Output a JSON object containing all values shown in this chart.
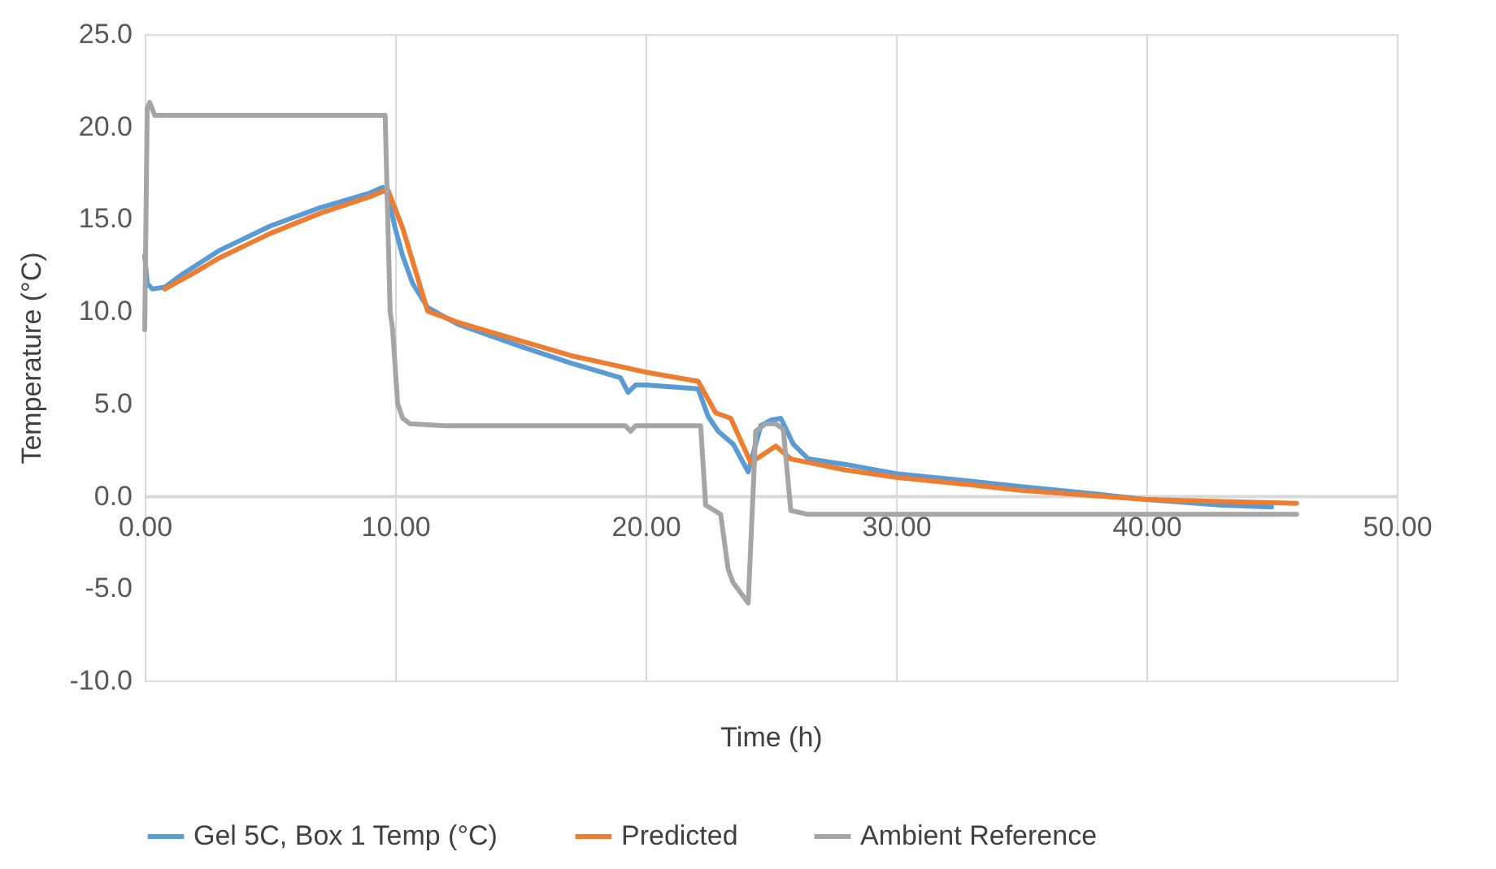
{
  "chart_data": {
    "type": "line",
    "xlabel": "Time (h)",
    "ylabel": "Temperature (°C)",
    "xlim": [
      0,
      50
    ],
    "xticks": [
      {
        "value": 0,
        "label": "0.00"
      },
      {
        "value": 10,
        "label": "10.00"
      },
      {
        "value": 20,
        "label": "20.00"
      },
      {
        "value": 30,
        "label": "30.00"
      },
      {
        "value": 40,
        "label": "40.00"
      },
      {
        "value": 50,
        "label": "50.00"
      }
    ],
    "ylim": [
      -10,
      25
    ],
    "yticks": [
      {
        "value": -10,
        "label": "-10.0"
      },
      {
        "value": -5,
        "label": "-5.0"
      },
      {
        "value": 0,
        "label": "0.0"
      },
      {
        "value": 5,
        "label": "5.0"
      },
      {
        "value": 10,
        "label": "10.0"
      },
      {
        "value": 15,
        "label": "15.0"
      },
      {
        "value": 20,
        "label": "20.0"
      },
      {
        "value": 25,
        "label": "25.0"
      }
    ],
    "grid": "x",
    "legend": "bottom",
    "marker": "none",
    "line_style": "solid",
    "series": [
      {
        "name": "Gel 5C, Box 1 Temp (°C)",
        "color": "#5b9bd5",
        "x": [
          0,
          0.1,
          0.3,
          0.8,
          1.5,
          3,
          5,
          7,
          9,
          9.5,
          9.7,
          10.0,
          10.3,
          10.7,
          11.3,
          12.5,
          15,
          17,
          19,
          19.3,
          19.6,
          20,
          22.1,
          22.5,
          22.9,
          23.5,
          24.1,
          24.6,
          25.0,
          25.4,
          25.9,
          26.5,
          28,
          30,
          33,
          35,
          38,
          40,
          43,
          45
        ],
        "values": [
          13,
          11.5,
          11.2,
          11.3,
          12.0,
          13.3,
          14.6,
          15.6,
          16.4,
          16.7,
          16.3,
          14.5,
          13.0,
          11.5,
          10.2,
          9.3,
          8.1,
          7.2,
          6.4,
          5.6,
          6.0,
          6.0,
          5.8,
          4.3,
          3.5,
          2.8,
          1.3,
          3.8,
          4.1,
          4.2,
          2.8,
          2.0,
          1.7,
          1.2,
          0.8,
          0.5,
          0.1,
          -0.2,
          -0.5,
          -0.6
        ]
      },
      {
        "name": "Predicted",
        "color": "#ed7d31",
        "x": [
          0.8,
          2,
          3,
          5,
          7,
          9,
          9.7,
          10.3,
          11.3,
          12.5,
          15,
          17,
          20,
          22.1,
          22.8,
          23.4,
          24.2,
          25.2,
          25.8,
          28,
          30,
          33,
          35,
          38,
          40,
          43,
          46
        ],
        "values": [
          11.2,
          12.1,
          12.9,
          14.2,
          15.3,
          16.2,
          16.6,
          14.5,
          10.0,
          9.4,
          8.4,
          7.6,
          6.7,
          6.2,
          4.5,
          4.2,
          1.8,
          2.7,
          2.0,
          1.4,
          1.0,
          0.6,
          0.3,
          0.0,
          -0.2,
          -0.3,
          -0.4
        ]
      },
      {
        "name": "Ambient Reference",
        "color": "#a5a5a5",
        "x": [
          0,
          0.1,
          0.2,
          0.4,
          1,
          3,
          5,
          7,
          9,
          9.6,
          9.8,
          9.9,
          10.1,
          10.3,
          10.6,
          12,
          15,
          19.2,
          19.4,
          19.6,
          22.2,
          22.4,
          23,
          23.3,
          23.5,
          24.1,
          24.4,
          24.8,
          25.2,
          25.5,
          25.8,
          26.5,
          30,
          35,
          40,
          46
        ],
        "values": [
          9,
          21,
          21.3,
          20.6,
          20.6,
          20.6,
          20.6,
          20.6,
          20.6,
          20.6,
          10,
          9.0,
          5,
          4.2,
          3.9,
          3.8,
          3.8,
          3.8,
          3.5,
          3.8,
          3.8,
          -0.5,
          -1,
          -4,
          -4.7,
          -5.8,
          3.5,
          3.9,
          3.9,
          3.6,
          -0.8,
          -1.0,
          -1.0,
          -1.0,
          -1.0,
          -1.0
        ]
      }
    ]
  }
}
